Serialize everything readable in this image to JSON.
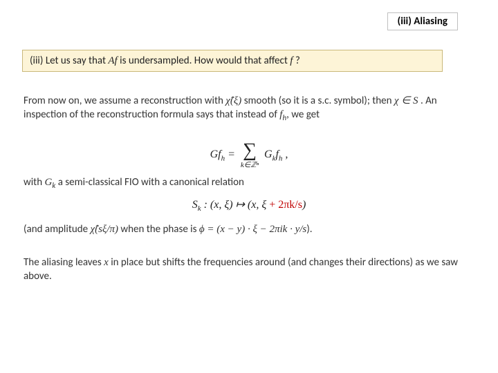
{
  "header": {
    "label": "(iii) Aliasing"
  },
  "question": {
    "prefix": "(iii) Let us say that ",
    "af": "Af",
    "mid": " is undersampled. How would that affect ",
    "f": "f",
    "suffix": " ?"
  },
  "para1": {
    "t1": "From now on, we assume a reconstruction with ",
    "chi_hat": "χ̂(ξ)",
    "t2": " smooth (so it is a s.c. symbol); then ",
    "chi_in_s": "χ ∈ S",
    "t3": " . An inspection of the reconstruction formula says that instead of ",
    "fh": "f",
    "fh_sub": "h",
    "t4": ", we get"
  },
  "eq1": {
    "lhs_G": "Gf",
    "lhs_sub": "h",
    "eq": " = ",
    "sum_sub": "k∈ℤⁿ",
    "rhs_G": "G",
    "rhs_Gk": "k",
    "rhs_f": "f",
    "rhs_fh": "h",
    "comma": " ,"
  },
  "para2": {
    "t1": "with ",
    "gk": "G",
    "gk_sub": "k",
    "t2": " a semi-classical FIO with a canonical relation"
  },
  "eq2": {
    "sk": "S",
    "sk_sub": "k",
    "colon": " :  ",
    "lhs": "(x, ξ) ↦ (x, ξ",
    "red": " + 2πk/s",
    "rparen": ")"
  },
  "para3": {
    "t1": "(and amplitude ",
    "amp": "χ̂(sξ/π)",
    "t2": " when the phase is ",
    "phi": "ϕ = (x − y) · ξ − 2πik · y/s",
    "t3": ")."
  },
  "para4": {
    "t1": "The aliasing leaves ",
    "x": "x",
    "t2": " in place but shifts the frequencies around (and changes their directions) as we saw above."
  },
  "colors": {
    "question_bg": "#fdf4d7",
    "question_border": "#c9b87a",
    "red": "#c00000"
  }
}
